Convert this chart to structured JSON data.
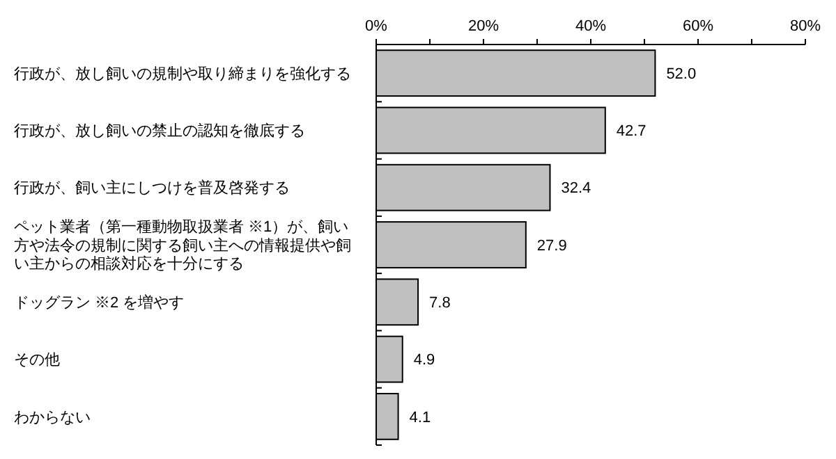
{
  "chart_data": {
    "type": "bar",
    "orientation": "horizontal",
    "categories": [
      "行政が、放し飼いの規制や取り締まりを強化する",
      "行政が、放し飼いの禁止の認知を徹底する",
      "行政が、飼い主にしつけを普及啓発する",
      "ペット業者（第一種動物取扱業者 ※1）が、飼い方や法令の規制に関する飼い主への情報提供や飼い主からの相談対応を十分にする",
      "ドッグラン ※2 を増やす",
      "その他",
      "わからない"
    ],
    "values": [
      52.0,
      42.7,
      32.4,
      27.9,
      7.8,
      4.9,
      4.1
    ],
    "value_labels": [
      "52.0",
      "42.7",
      "32.4",
      "27.9",
      "7.8",
      "4.9",
      "4.1"
    ],
    "color": "#c0c0c0",
    "grid": false,
    "xlim": [
      0,
      80
    ],
    "xticks": [
      {
        "value": 0,
        "label": "0%"
      },
      {
        "value": 10,
        "label": null
      },
      {
        "value": 20,
        "label": "20%"
      },
      {
        "value": 30,
        "label": null
      },
      {
        "value": 40,
        "label": "40%"
      },
      {
        "value": 50,
        "label": null
      },
      {
        "value": 60,
        "label": "60%"
      },
      {
        "value": 70,
        "label": null
      },
      {
        "value": 80,
        "label": "80%"
      }
    ]
  }
}
